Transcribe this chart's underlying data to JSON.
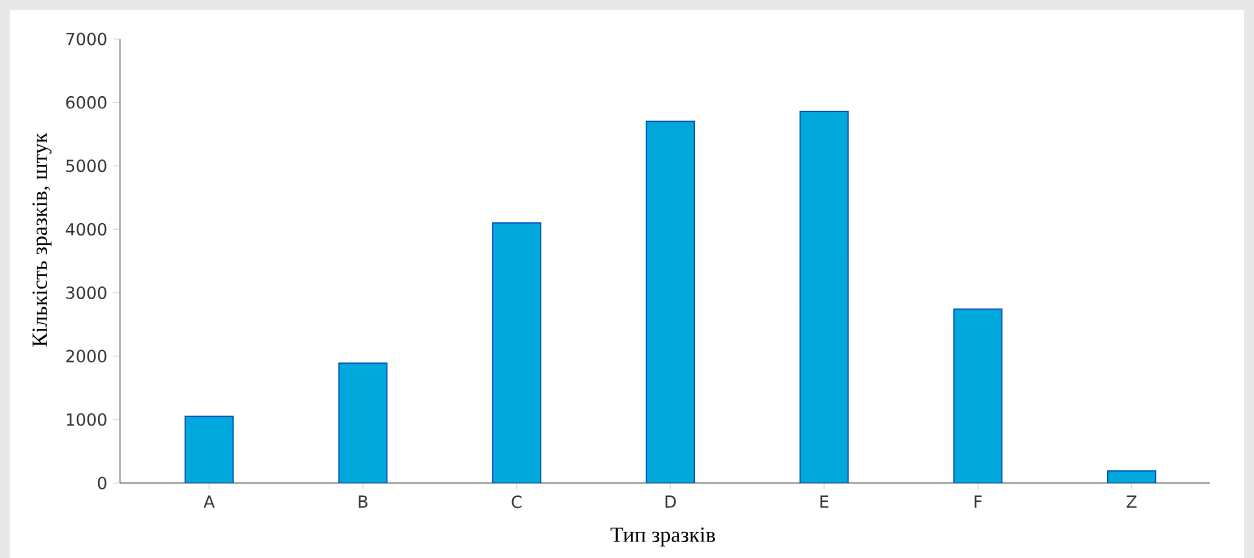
{
  "chart_data": {
    "type": "bar",
    "xlabel": "Тип зразків",
    "ylabel": "Кількість зразків, штук",
    "categories": [
      "A",
      "B",
      "C",
      "D",
      "E",
      "F",
      "Z"
    ],
    "values": [
      1050,
      1890,
      4100,
      5700,
      5860,
      2740,
      190
    ],
    "color": "#00a8dc",
    "ylim": [
      0,
      7000
    ],
    "yticks": [
      0,
      1000,
      2000,
      3000,
      4000,
      5000,
      6000,
      7000
    ],
    "grid": false
  }
}
